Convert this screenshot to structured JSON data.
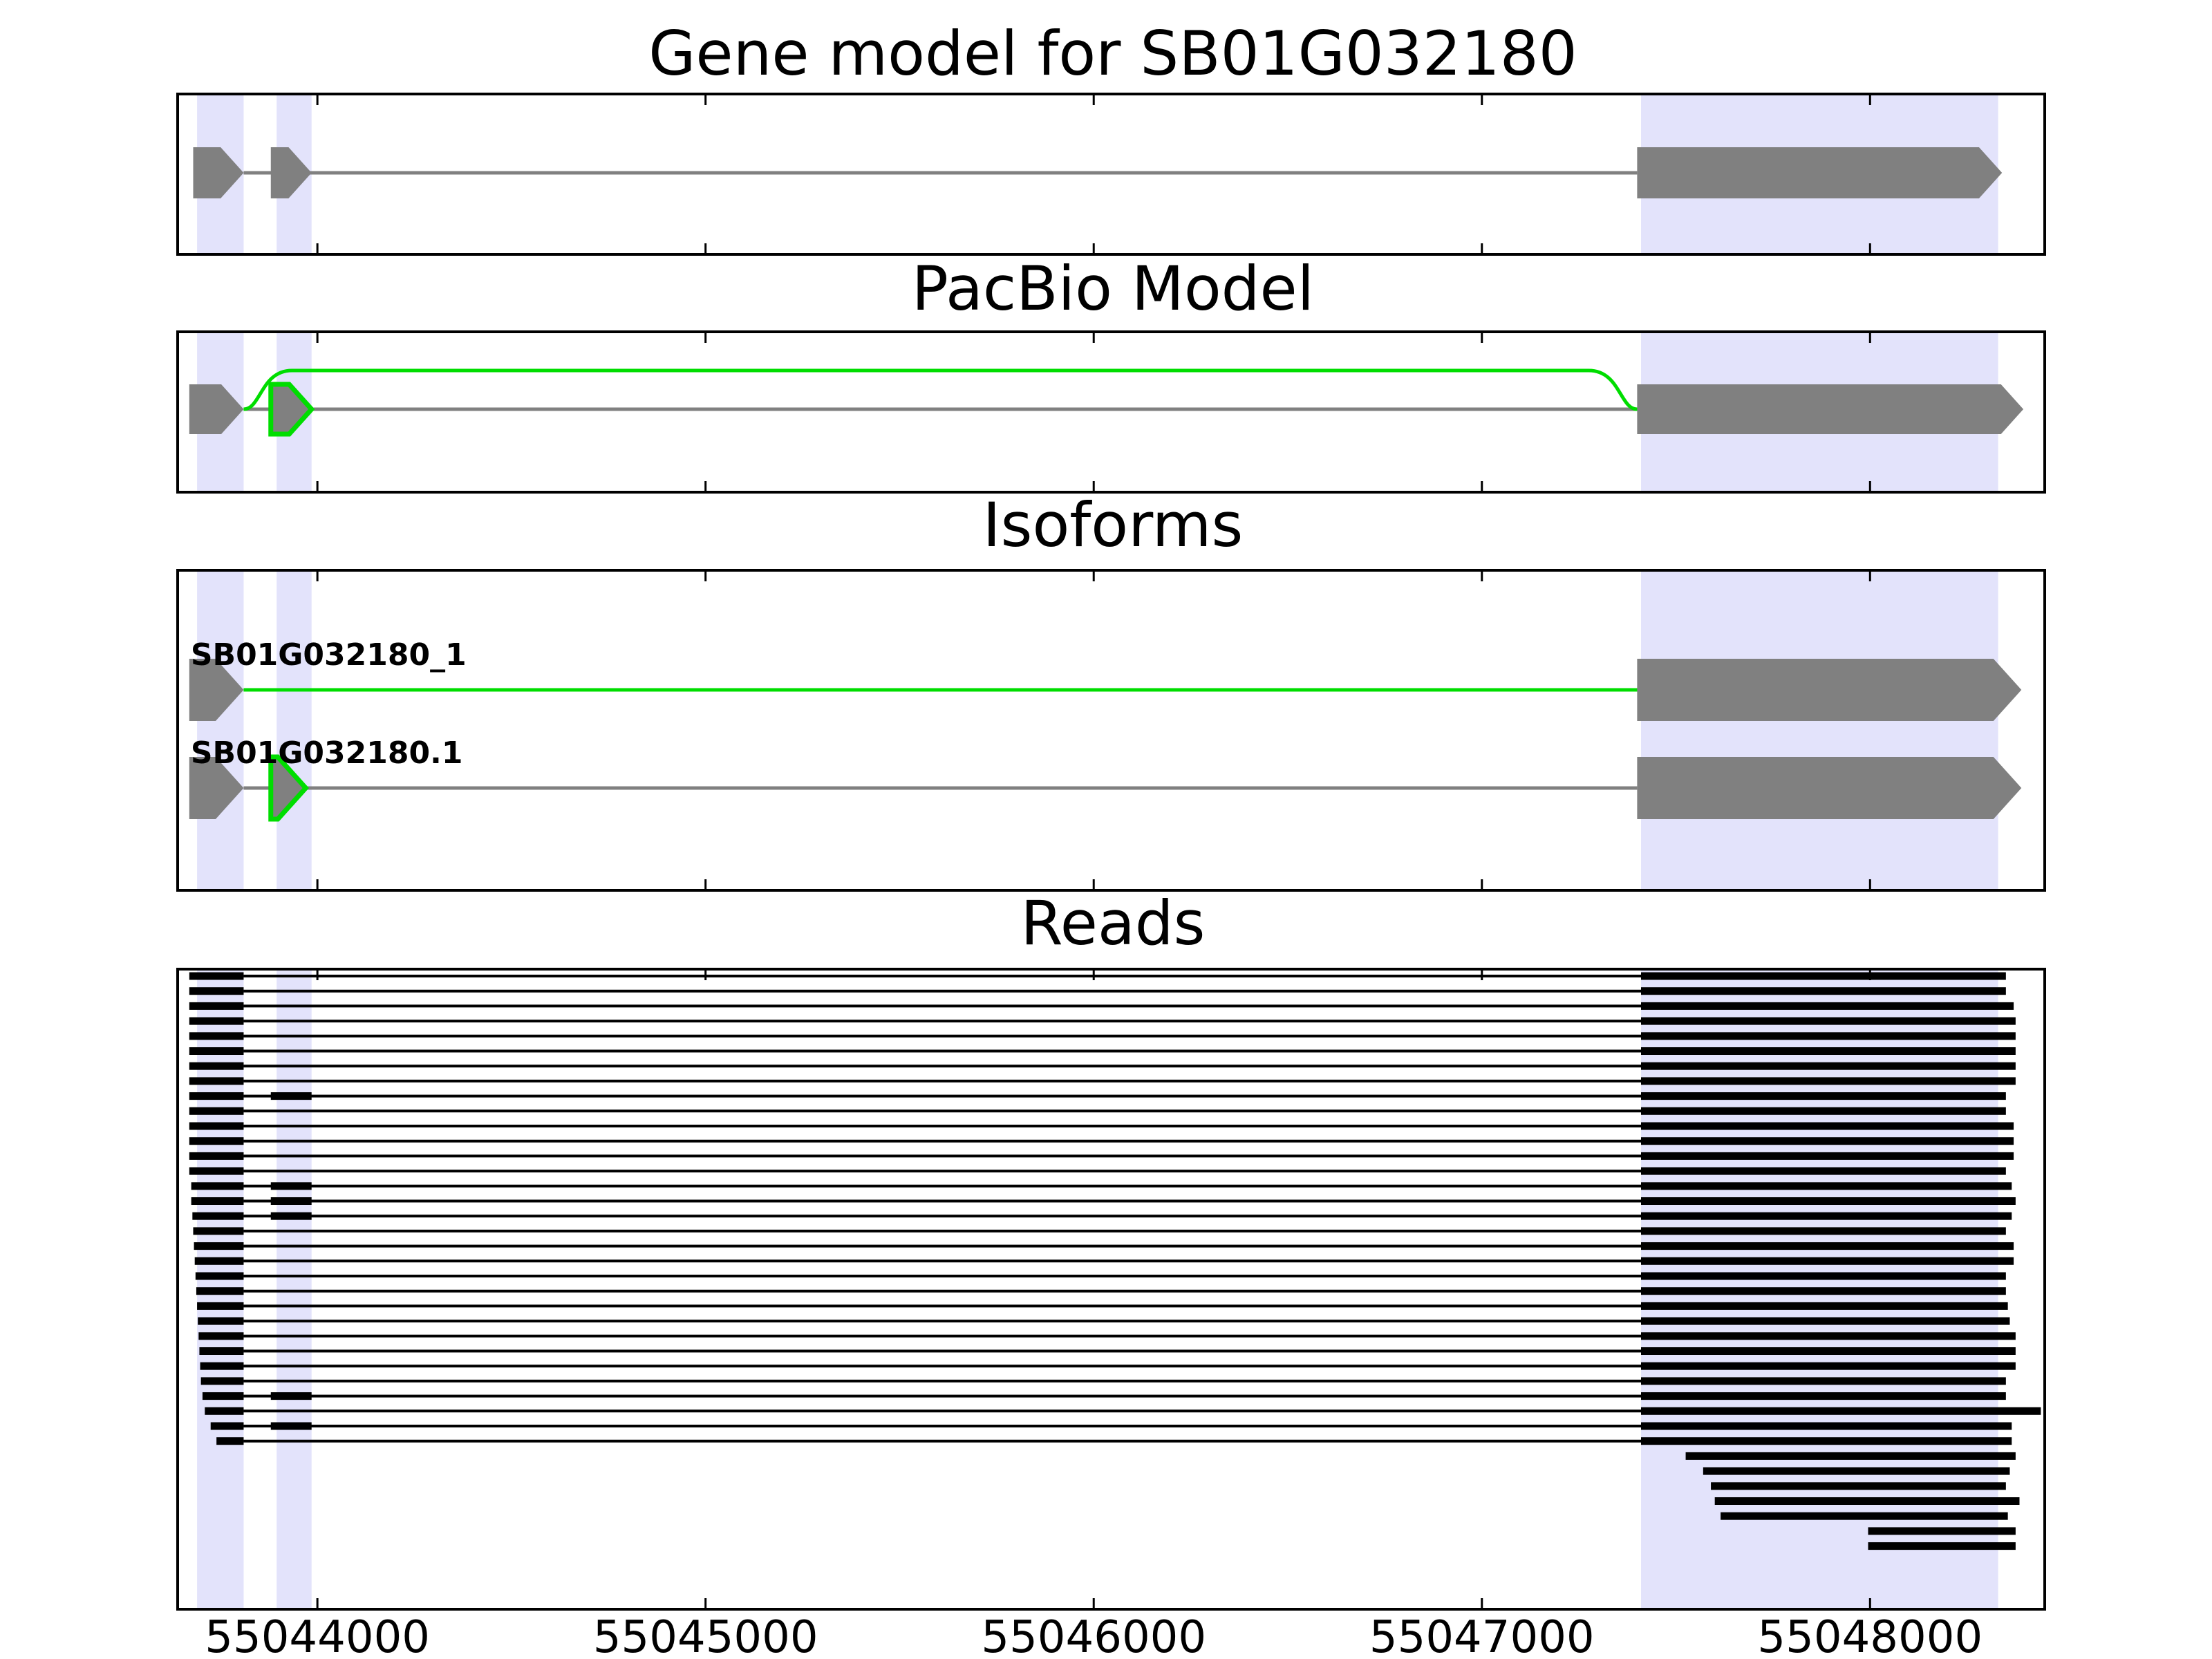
{
  "chart_data": {
    "type": "gene-track",
    "x_axis": {
      "ticks": [
        55044000,
        55045000,
        55046000,
        55047000,
        55048000
      ],
      "tick_labels": [
        "55044000",
        "55045000",
        "55046000",
        "55047000",
        "55048000"
      ],
      "range": [
        55043640,
        55048450
      ]
    },
    "colors": {
      "exon": "#808080",
      "intron": "#808080",
      "highlight": "#00dd00",
      "exon_band": "#e3e3fb",
      "read": "#000000"
    },
    "exon_bands": [
      [
        55043690,
        55043810
      ],
      [
        55043895,
        55043985
      ],
      [
        55047410,
        55048330
      ]
    ],
    "panels": [
      {
        "title": "Gene model for SB01G032180",
        "transcripts": [
          {
            "label": "",
            "exons": [
              [
                55043680,
                55043810
              ],
              [
                55043880,
                55043985
              ],
              [
                55047400,
                55048340
              ]
            ],
            "strand": "+"
          }
        ]
      },
      {
        "title": "PacBio Model",
        "transcripts": [
          {
            "label": "",
            "exons": [
              [
                55043670,
                55043810
              ],
              [
                55043880,
                55043985
              ],
              [
                55047400,
                55048395
              ]
            ],
            "strand": "+",
            "skip_junction": [
              55043810,
              55047400
            ],
            "highlight_exon": 1
          }
        ]
      },
      {
        "title": "Isoforms",
        "transcripts": [
          {
            "label": "SB01G032180_1",
            "exons": [
              [
                55043670,
                55043810
              ],
              [
                55047400,
                55048390
              ]
            ],
            "strand": "+",
            "highlight_junction": [
              55043810,
              55047400
            ]
          },
          {
            "label": "SB01G032180.1",
            "exons": [
              [
                55043670,
                55043810
              ],
              [
                55043880,
                55043970
              ],
              [
                55047400,
                55048390
              ]
            ],
            "strand": "+",
            "highlight_exon": 1
          }
        ]
      },
      {
        "title": "Reads",
        "reads": [
          [
            [
              55043670,
              55043810
            ],
            [
              55047410,
              55048350
            ]
          ],
          [
            [
              55043670,
              55043810
            ],
            [
              55047410,
              55048350
            ]
          ],
          [
            [
              55043670,
              55043810
            ],
            [
              55047410,
              55048370
            ]
          ],
          [
            [
              55043670,
              55043810
            ],
            [
              55047410,
              55048375
            ]
          ],
          [
            [
              55043670,
              55043810
            ],
            [
              55047410,
              55048375
            ]
          ],
          [
            [
              55043670,
              55043810
            ],
            [
              55047410,
              55048375
            ]
          ],
          [
            [
              55043670,
              55043810
            ],
            [
              55047410,
              55048375
            ]
          ],
          [
            [
              55043670,
              55043810
            ],
            [
              55047410,
              55048375
            ]
          ],
          [
            [
              55043670,
              55043810
            ],
            [
              55043880,
              55043985
            ],
            [
              55047410,
              55048350
            ]
          ],
          [
            [
              55043670,
              55043810
            ],
            [
              55047410,
              55048350
            ]
          ],
          [
            [
              55043670,
              55043810
            ],
            [
              55047410,
              55048370
            ]
          ],
          [
            [
              55043670,
              55043810
            ],
            [
              55047410,
              55048370
            ]
          ],
          [
            [
              55043670,
              55043810
            ],
            [
              55047410,
              55048370
            ]
          ],
          [
            [
              55043670,
              55043810
            ],
            [
              55047410,
              55048350
            ]
          ],
          [
            [
              55043675,
              55043810
            ],
            [
              55043880,
              55043985
            ],
            [
              55047410,
              55048365
            ]
          ],
          [
            [
              55043675,
              55043810
            ],
            [
              55043880,
              55043985
            ],
            [
              55047410,
              55048375
            ]
          ],
          [
            [
              55043678,
              55043810
            ],
            [
              55043880,
              55043985
            ],
            [
              55047410,
              55048365
            ]
          ],
          [
            [
              55043680,
              55043810
            ],
            [
              55047410,
              55048350
            ]
          ],
          [
            [
              55043682,
              55043810
            ],
            [
              55047410,
              55048370
            ]
          ],
          [
            [
              55043684,
              55043810
            ],
            [
              55047410,
              55048370
            ]
          ],
          [
            [
              55043686,
              55043810
            ],
            [
              55047410,
              55048350
            ]
          ],
          [
            [
              55043688,
              55043810
            ],
            [
              55047410,
              55048350
            ]
          ],
          [
            [
              55043690,
              55043810
            ],
            [
              55047410,
              55048355
            ]
          ],
          [
            [
              55043692,
              55043810
            ],
            [
              55047410,
              55048360
            ]
          ],
          [
            [
              55043694,
              55043810
            ],
            [
              55047410,
              55048375
            ]
          ],
          [
            [
              55043696,
              55043810
            ],
            [
              55047410,
              55048375
            ]
          ],
          [
            [
              55043698,
              55043810
            ],
            [
              55047410,
              55048375
            ]
          ],
          [
            [
              55043700,
              55043810
            ],
            [
              55047410,
              55048350
            ]
          ],
          [
            [
              55043704,
              55043810
            ],
            [
              55043880,
              55043985
            ],
            [
              55047410,
              55048350
            ]
          ],
          [
            [
              55043710,
              55043810
            ],
            [
              55047410,
              55048440
            ]
          ],
          [
            [
              55043725,
              55043810
            ],
            [
              55043880,
              55043985
            ],
            [
              55047410,
              55048365
            ]
          ],
          [
            [
              55043740,
              55043810
            ],
            [
              55047410,
              55048365
            ]
          ],
          [
            [
              55047525,
              55048375
            ]
          ],
          [
            [
              55047570,
              55048360
            ]
          ],
          [
            [
              55047590,
              55048350
            ]
          ],
          [
            [
              55047600,
              55048385
            ]
          ],
          [
            [
              55047615,
              55048355
            ]
          ],
          [
            [
              55047995,
              55048375
            ]
          ],
          [
            [
              55047995,
              55048375
            ]
          ]
        ]
      }
    ]
  }
}
